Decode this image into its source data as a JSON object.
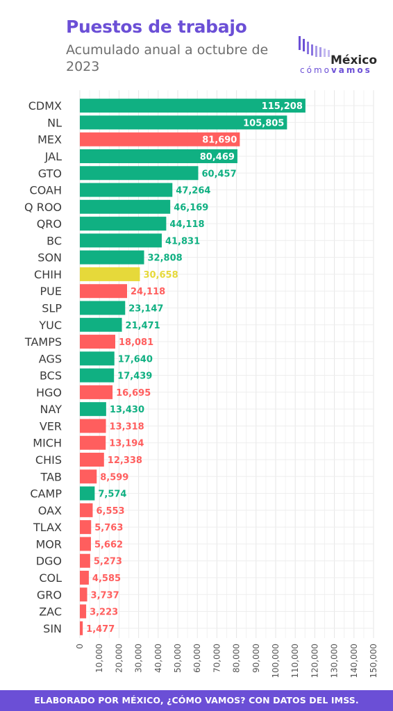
{
  "header": {
    "title": "Puestos de trabajo",
    "subtitle": "Acumulado anual a octubre de 2023"
  },
  "logo": {
    "name": "México",
    "tagline_left": "cómo",
    "tagline_right": "vamos"
  },
  "footer": {
    "text": "ELABORADO POR MÉXICO, ¿CÓMO VAMOS? CON DATOS DEL IMSS."
  },
  "colors": {
    "green": "#10b082",
    "red": "#ff5e5e",
    "yellow": "#e6d93a",
    "brand": "#6b4fd6"
  },
  "chart_data": {
    "type": "bar",
    "orientation": "horizontal",
    "title": "Puestos de trabajo",
    "subtitle": "Acumulado anual a octubre de 2023",
    "xlim": [
      0,
      150000
    ],
    "xticks": [
      "0",
      "10,000",
      "20,000",
      "30,000",
      "40,000",
      "50,000",
      "60,000",
      "70,000",
      "80,000",
      "90,000",
      "100,000",
      "110,000",
      "120,000",
      "130,000",
      "140,000",
      "150,000"
    ],
    "grid": true,
    "categories": [
      "CDMX",
      "NL",
      "MEX",
      "JAL",
      "GTO",
      "COAH",
      "Q ROO",
      "QRO",
      "BC",
      "SON",
      "CHIH",
      "PUE",
      "SLP",
      "YUC",
      "TAMPS",
      "AGS",
      "BCS",
      "HGO",
      "NAY",
      "VER",
      "MICH",
      "CHIS",
      "TAB",
      "CAMP",
      "OAX",
      "TLAX",
      "MOR",
      "DGO",
      "COL",
      "GRO",
      "ZAC",
      "SIN"
    ],
    "values": [
      115208,
      105805,
      81690,
      80469,
      60457,
      47264,
      46169,
      44118,
      41831,
      32808,
      30658,
      24118,
      23147,
      21471,
      18081,
      17640,
      17439,
      16695,
      13430,
      13318,
      13194,
      12338,
      8599,
      7574,
      6553,
      5763,
      5662,
      5273,
      4585,
      3737,
      3223,
      1477
    ],
    "labels": [
      "115,208",
      "105,805",
      "81,690",
      "80,469",
      "60,457",
      "47,264",
      "46,169",
      "44,118",
      "41,831",
      "32,808",
      "30,658",
      "24,118",
      "23,147",
      "21,471",
      "18,081",
      "17,640",
      "17,439",
      "16,695",
      "13,430",
      "13,318",
      "13,194",
      "12,338",
      "8,599",
      "7,574",
      "6,553",
      "5,763",
      "5,662",
      "5,273",
      "4,585",
      "3,737",
      "3,223",
      "1,477"
    ],
    "bar_colors": [
      "green",
      "green",
      "red",
      "green",
      "green",
      "green",
      "green",
      "green",
      "green",
      "green",
      "yellow",
      "red",
      "green",
      "green",
      "red",
      "green",
      "green",
      "red",
      "green",
      "red",
      "red",
      "red",
      "red",
      "green",
      "red",
      "red",
      "red",
      "red",
      "red",
      "red",
      "red",
      "red"
    ]
  }
}
